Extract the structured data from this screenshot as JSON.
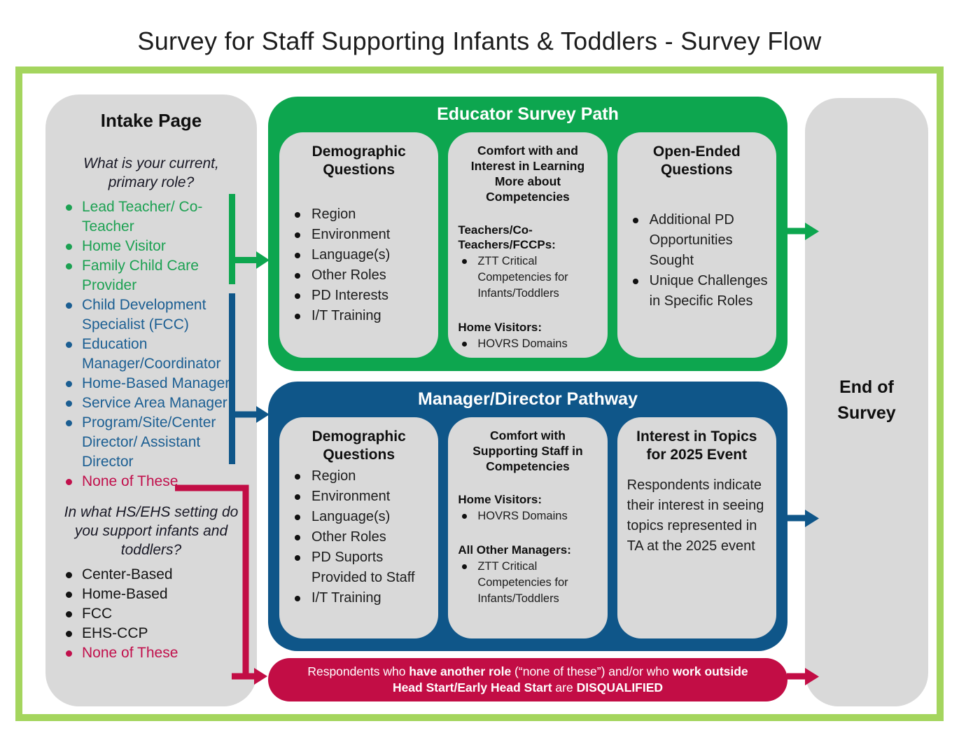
{
  "title": "Survey for Staff Supporting Infants & Toddlers - Survey Flow",
  "colors": {
    "frame-green": "#A4D55E",
    "path-green": "#0DA64F",
    "path-blue": "#0F5689",
    "alert-red": "#C20D45",
    "box-gray": "#D9D9D9",
    "green-text": "#1CA152",
    "blue-text": "#1B5E92",
    "red-text": "#C1104C"
  },
  "intake": {
    "title": "Intake Page",
    "question1": "What is your current, primary role?",
    "q1_roles": [
      {
        "label": "Lead Teacher/ Co-Teacher",
        "color": "green"
      },
      {
        "label": "Home Visitor",
        "color": "green"
      },
      {
        "label": "Family Child Care Provider",
        "color": "green"
      },
      {
        "label": "Child Development Specialist (FCC)",
        "color": "blue"
      },
      {
        "label": "Education Manager/Coordinator",
        "color": "blue"
      },
      {
        "label": "Home-Based Manager",
        "color": "blue"
      },
      {
        "label": "Service Area Manager",
        "color": "blue"
      },
      {
        "label": "Program/Site/Center Director/ Assistant Director",
        "color": "blue"
      },
      {
        "label": "None of These",
        "color": "red"
      }
    ],
    "question2": "In what HS/EHS setting do you support infants and toddlers?",
    "q2_settings": [
      {
        "label": "Center-Based",
        "color": "black"
      },
      {
        "label": "Home-Based",
        "color": "black"
      },
      {
        "label": "FCC",
        "color": "black"
      },
      {
        "label": "EHS-CCP",
        "color": "black"
      },
      {
        "label": "None of These",
        "color": "red"
      }
    ]
  },
  "educator_path": {
    "title": "Educator Survey Path",
    "cards": [
      {
        "title": "Demographic Questions",
        "bullets": [
          "Region",
          "Environment",
          "Language(s)",
          "Other Roles",
          "PD Interests",
          "I/T Training"
        ]
      },
      {
        "title": "Comfort with and Interest in Learning More about Competencies",
        "groups": [
          {
            "heading": "Teachers/Co-Teachers/FCCPs:",
            "bullets": [
              "ZTT Critical Competencies for Infants/Toddlers"
            ]
          },
          {
            "heading": "Home Visitors:",
            "bullets": [
              "HOVRS Domains"
            ]
          }
        ]
      },
      {
        "title": "Open-Ended Questions",
        "bullets": [
          "Additional PD Opportunities Sought",
          "Unique Challenges in Specific Roles"
        ]
      }
    ]
  },
  "manager_path": {
    "title": "Manager/Director Pathway",
    "cards": [
      {
        "title": "Demographic Questions",
        "bullets": [
          "Region",
          "Environment",
          "Language(s)",
          "Other Roles",
          "PD Suports Provided to Staff",
          "I/T Training"
        ]
      },
      {
        "title": "Comfort with Supporting Staff in Competencies",
        "groups": [
          {
            "heading": "Home Visitors:",
            "bullets": [
              "HOVRS Domains"
            ]
          },
          {
            "heading": "All Other Managers:",
            "bullets": [
              "ZTT Critical Competencies for Infants/Toddlers"
            ]
          }
        ]
      },
      {
        "title": "Interest in Topics for 2025 Event",
        "paragraph": "Respondents indicate their interest in seeing topics represented in TA at the 2025 event"
      }
    ]
  },
  "disqualified_banner": {
    "segments": [
      {
        "text": "Respondents who ",
        "bold": false
      },
      {
        "text": "have another role",
        "bold": true
      },
      {
        "text": " (“none of these”) and/or who ",
        "bold": false
      },
      {
        "text": "work outside Head Start/Early Head Start",
        "bold": true
      },
      {
        "text": " are ",
        "bold": false
      },
      {
        "text": "DISQUALIFIED",
        "bold": true
      }
    ]
  },
  "end_box": {
    "title": "End of Survey"
  }
}
